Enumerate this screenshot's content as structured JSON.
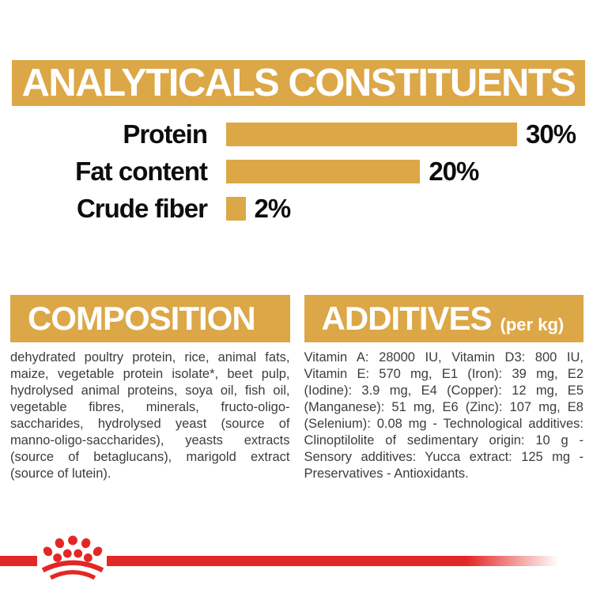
{
  "header": {
    "title": "ANALYTICALS CONSTITUENTS"
  },
  "chart_data": {
    "type": "bar",
    "orientation": "horizontal",
    "title": "ANALYTICALS CONSTITUENTS",
    "categories": [
      "Protein",
      "Fat content",
      "Crude fiber"
    ],
    "values": [
      30,
      20,
      2
    ],
    "value_labels": [
      "30%",
      "20%",
      "2%"
    ],
    "unit": "%",
    "xlim": [
      0,
      30
    ],
    "bar_color": "#DCA747",
    "grid": false,
    "legend": "none"
  },
  "composition": {
    "title": "COMPOSITION",
    "body": "dehydrated poultry protein, rice, animal fats, maize, vegetable protein isolate*, beet pulp, hydrolysed animal proteins, soya oil, fish oil, vegetable fibres, minerals, fructo-oligo-saccharides, hydrolysed yeast (source of manno-oligo-saccharides), yeasts extracts (source of betaglucans), marigold extract (source of lutein)."
  },
  "additives": {
    "title": "ADDITIVES",
    "title_suffix": "(per kg)",
    "body": "Vitamin A: 28000 IU, Vitamin D3: 800 IU, Vitamin E: 570 mg, E1 (Iron): 39 mg, E2 (Iodine): 3.9 mg, E4 (Copper): 12 mg, E5 (Manganese): 51 mg, E6 (Zinc): 107 mg, E8 (Selenium): 0.08 mg - Technological additives: Clinoptilolite of sedimentary origin: 10 g - Sensory additives: Yucca extract: 125 mg - Preservatives - Antioxidants."
  },
  "footer": {
    "logo_icon": "royal-canin-crown-icon"
  },
  "colors": {
    "gold": "#DCA747",
    "red": "#E32726",
    "text": "#3C3C3C"
  }
}
